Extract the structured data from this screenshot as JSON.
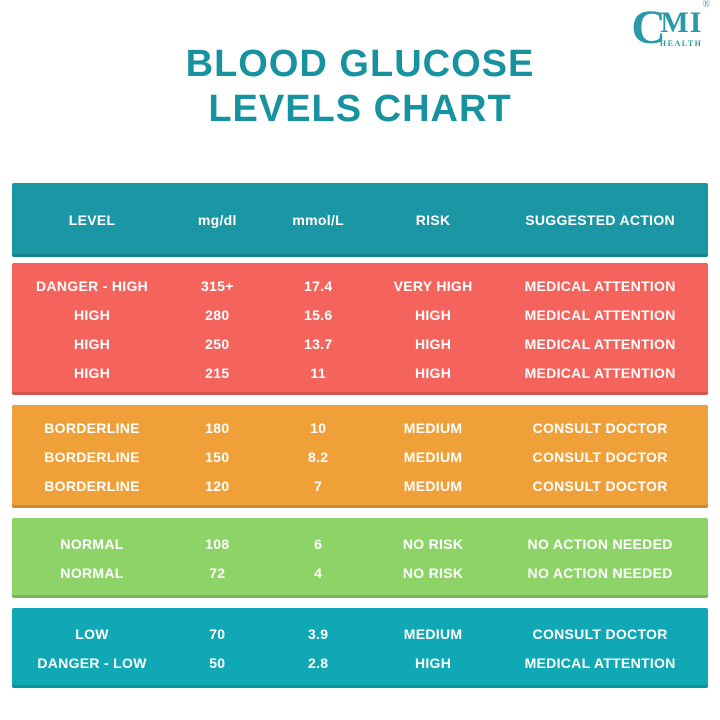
{
  "logo": {
    "c": "C",
    "mi": "MI",
    "health": "HEALTH",
    "registered": "®"
  },
  "title": {
    "line1": "BLOOD GLUCOSE",
    "line2": "LEVELS CHART"
  },
  "colors": {
    "title_teal": "#17929f",
    "header_teal": "#1a96a4",
    "danger_high_red": "#f5645c",
    "borderline_orange": "#f0a039",
    "normal_green": "#8ed368",
    "low_teal": "#0fa8b4",
    "text_white": "#ffffff"
  },
  "chart_data": {
    "type": "table",
    "title": "BLOOD GLUCOSE LEVELS CHART",
    "columns": [
      "LEVEL",
      "mg/dl",
      "mmol/L",
      "RISK",
      "SUGGESTED ACTION"
    ],
    "bands": [
      {
        "id": "danger-high",
        "color": "#f5645c",
        "pad": "pad-sm",
        "rows": [
          [
            "DANGER - HIGH",
            "315+",
            "17.4",
            "VERY HIGH",
            "MEDICAL ATTENTION"
          ],
          [
            "HIGH",
            "280",
            "15.6",
            "HIGH",
            "MEDICAL ATTENTION"
          ],
          [
            "HIGH",
            "250",
            "13.7",
            "HIGH",
            "MEDICAL ATTENTION"
          ],
          [
            "HIGH",
            "215",
            "11",
            "HIGH",
            "MEDICAL ATTENTION"
          ]
        ]
      },
      {
        "id": "borderline",
        "color": "#f0a039",
        "pad": "pad-sm",
        "rows": [
          [
            "BORDERLINE",
            "180",
            "10",
            "MEDIUM",
            "CONSULT DOCTOR"
          ],
          [
            "BORDERLINE",
            "150",
            "8.2",
            "MEDIUM",
            "CONSULT DOCTOR"
          ],
          [
            "BORDERLINE",
            "120",
            "7",
            "MEDIUM",
            "CONSULT DOCTOR"
          ]
        ]
      },
      {
        "id": "normal",
        "color": "#8ed368",
        "pad": "pad-lg",
        "rows": [
          [
            "NORMAL",
            "108",
            "6",
            "NO RISK",
            "NO ACTION NEEDED"
          ],
          [
            "NORMAL",
            "72",
            "4",
            "NO RISK",
            "NO ACTION NEEDED"
          ]
        ]
      },
      {
        "id": "low",
        "color": "#0fa8b4",
        "pad": "pad-lg",
        "rows": [
          [
            "LOW",
            "70",
            "3.9",
            "MEDIUM",
            "CONSULT DOCTOR"
          ],
          [
            "DANGER - LOW",
            "50",
            "2.8",
            "HIGH",
            "MEDICAL ATTENTION"
          ]
        ]
      }
    ]
  }
}
